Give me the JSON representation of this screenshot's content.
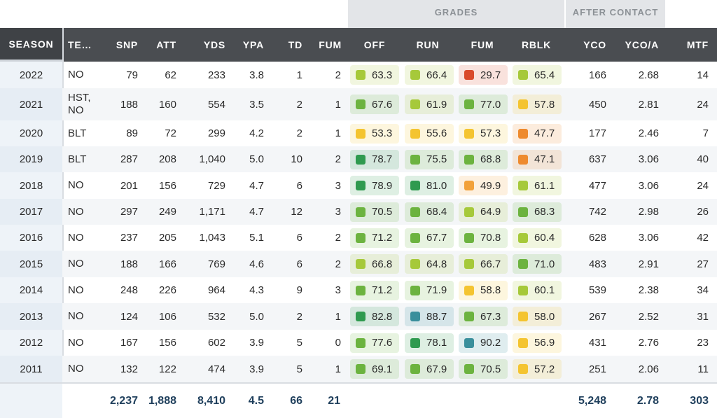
{
  "groups": {
    "grades": "GRADES",
    "after_contact": "AFTER CONTACT"
  },
  "headers": {
    "season": "SEASON",
    "team": "TE…",
    "snp": "SNP",
    "att": "ATT",
    "yds": "YDS",
    "ypa": "YPA",
    "td": "TD",
    "fum": "FUM",
    "off": "OFF",
    "run": "RUN",
    "fum_grade": "FUM",
    "rblk": "RBLK",
    "yco": "YCO",
    "yco_a": "YCO/A",
    "mtf": "MTF"
  },
  "grade_colors": {
    "elite_teal": "#3a8f9c",
    "high_green": "#2f9a4f",
    "good_green": "#6cb33f",
    "above_lime": "#a6c93a",
    "avg_yellow": "#f4c430",
    "below_orange": "#f2a13a",
    "poor_orange": "#ee8a2e",
    "bad_red": "#d94a2b"
  },
  "rows": [
    {
      "season": "2022",
      "team": "NO",
      "snp": "79",
      "att": "62",
      "yds": "233",
      "ypa": "3.8",
      "td": "1",
      "fum": "2",
      "off": "63.3",
      "run": "66.4",
      "fum_grade": "29.7",
      "rblk": "65.4",
      "yco": "166",
      "yco_a": "2.68",
      "mtf": "14"
    },
    {
      "season": "2021",
      "team": "HST, NO",
      "snp": "188",
      "att": "160",
      "yds": "554",
      "ypa": "3.5",
      "td": "2",
      "fum": "1",
      "off": "67.6",
      "run": "61.9",
      "fum_grade": "77.0",
      "rblk": "57.8",
      "yco": "450",
      "yco_a": "2.81",
      "mtf": "24"
    },
    {
      "season": "2020",
      "team": "BLT",
      "snp": "89",
      "att": "72",
      "yds": "299",
      "ypa": "4.2",
      "td": "2",
      "fum": "1",
      "off": "53.3",
      "run": "55.6",
      "fum_grade": "57.3",
      "rblk": "47.7",
      "yco": "177",
      "yco_a": "2.46",
      "mtf": "7"
    },
    {
      "season": "2019",
      "team": "BLT",
      "snp": "287",
      "att": "208",
      "yds": "1,040",
      "ypa": "5.0",
      "td": "10",
      "fum": "2",
      "off": "78.7",
      "run": "75.5",
      "fum_grade": "68.8",
      "rblk": "47.1",
      "yco": "637",
      "yco_a": "3.06",
      "mtf": "40"
    },
    {
      "season": "2018",
      "team": "NO",
      "snp": "201",
      "att": "156",
      "yds": "729",
      "ypa": "4.7",
      "td": "6",
      "fum": "3",
      "off": "78.9",
      "run": "81.0",
      "fum_grade": "49.9",
      "rblk": "61.1",
      "yco": "477",
      "yco_a": "3.06",
      "mtf": "24"
    },
    {
      "season": "2017",
      "team": "NO",
      "snp": "297",
      "att": "249",
      "yds": "1,171",
      "ypa": "4.7",
      "td": "12",
      "fum": "3",
      "off": "70.5",
      "run": "68.4",
      "fum_grade": "64.9",
      "rblk": "68.3",
      "yco": "742",
      "yco_a": "2.98",
      "mtf": "26"
    },
    {
      "season": "2016",
      "team": "NO",
      "snp": "237",
      "att": "205",
      "yds": "1,043",
      "ypa": "5.1",
      "td": "6",
      "fum": "2",
      "off": "71.2",
      "run": "67.7",
      "fum_grade": "70.8",
      "rblk": "60.4",
      "yco": "628",
      "yco_a": "3.06",
      "mtf": "42"
    },
    {
      "season": "2015",
      "team": "NO",
      "snp": "188",
      "att": "166",
      "yds": "769",
      "ypa": "4.6",
      "td": "6",
      "fum": "2",
      "off": "66.8",
      "run": "64.8",
      "fum_grade": "66.7",
      "rblk": "71.0",
      "yco": "483",
      "yco_a": "2.91",
      "mtf": "27"
    },
    {
      "season": "2014",
      "team": "NO",
      "snp": "248",
      "att": "226",
      "yds": "964",
      "ypa": "4.3",
      "td": "9",
      "fum": "3",
      "off": "71.2",
      "run": "71.9",
      "fum_grade": "58.8",
      "rblk": "60.1",
      "yco": "539",
      "yco_a": "2.38",
      "mtf": "34"
    },
    {
      "season": "2013",
      "team": "NO",
      "snp": "124",
      "att": "106",
      "yds": "532",
      "ypa": "5.0",
      "td": "2",
      "fum": "1",
      "off": "82.8",
      "run": "88.7",
      "fum_grade": "67.3",
      "rblk": "58.0",
      "yco": "267",
      "yco_a": "2.52",
      "mtf": "31"
    },
    {
      "season": "2012",
      "team": "NO",
      "snp": "167",
      "att": "156",
      "yds": "602",
      "ypa": "3.9",
      "td": "5",
      "fum": "0",
      "off": "77.6",
      "run": "78.1",
      "fum_grade": "90.2",
      "rblk": "56.9",
      "yco": "431",
      "yco_a": "2.76",
      "mtf": "23"
    },
    {
      "season": "2011",
      "team": "NO",
      "snp": "132",
      "att": "122",
      "yds": "474",
      "ypa": "3.9",
      "td": "5",
      "fum": "1",
      "off": "69.1",
      "run": "67.9",
      "fum_grade": "70.5",
      "rblk": "57.2",
      "yco": "251",
      "yco_a": "2.06",
      "mtf": "11"
    }
  ],
  "totals": {
    "snp": "2,237",
    "att": "1,888",
    "yds": "8,410",
    "ypa": "4.5",
    "td": "66",
    "fum": "21",
    "yco": "5,248",
    "yco_a": "2.78",
    "mtf": "303"
  }
}
